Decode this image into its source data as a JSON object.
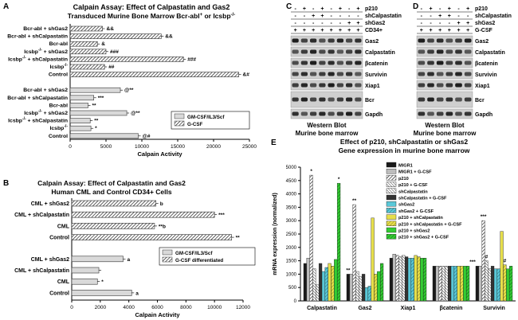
{
  "chart_data": [
    {
      "id": "A",
      "panel_letter": "A",
      "type": "bar",
      "orientation": "horizontal",
      "title": "Calpain Assay: Effect of Calpastatin and Gas2",
      "subtitle_part1": "Transduced Murine Bone Marrow Bcr-abl",
      "subtitle_sup": "+",
      "subtitle_part2": " or Icsbp",
      "subtitle_sup2": "-/-",
      "xlabel": "Calpain Activity",
      "xlim": [
        0,
        25000
      ],
      "xticks": [
        "0",
        "5000",
        "10000",
        "15000",
        "20000",
        "25000"
      ],
      "legend": [
        "GM-CSF/IL3/Scf",
        "G-CSF"
      ],
      "groups": [
        {
          "name": "G-CSF",
          "categories": [
            "Bcr-abl + shGas2",
            "Bcr-abl + shCalpastatin",
            "Bcr-abl",
            "Icsbp-/- + shGas2",
            "Icsbp-/- + shCalpastatin",
            "Icsbp-/-",
            "Control"
          ],
          "values": [
            4500,
            12700,
            3800,
            5000,
            15800,
            4800,
            23500
          ],
          "labels": [
            "&&",
            "&&",
            "&",
            "###",
            "###",
            "##",
            "&#"
          ]
        },
        {
          "name": "GM-CSF/IL3/Scf",
          "categories": [
            "Bcr-abl + shGas2",
            "Bcr-abl + shCalpastatin",
            "Bcr-abl",
            "Icsbp-/- + shGas2",
            "Icsbp-/- + shCalpastatin",
            "Icsbp-/-",
            "Control"
          ],
          "values": [
            7000,
            3300,
            2500,
            7900,
            2800,
            2900,
            9500
          ],
          "labels": [
            "@**",
            "***",
            "**",
            "@**",
            "**",
            "*",
            "@#"
          ]
        }
      ]
    },
    {
      "id": "B",
      "panel_letter": "B",
      "type": "bar",
      "orientation": "horizontal",
      "title": "Calpain Assay: Effect of Calpastatin and Gas2",
      "subtitle": "Human CML and Control CD34+ Cells",
      "xlabel": "Calpain Activity",
      "xlim": [
        0,
        12000
      ],
      "xticks": [
        "0",
        "2000",
        "4000",
        "6000",
        "8000",
        "10000",
        "12000"
      ],
      "legend": [
        "GM-CSF/IL3/Scf",
        "G-CSF differentiated"
      ],
      "groups": [
        {
          "name": "G-CSF differentiated",
          "categories": [
            "CML + shGas2",
            "CML + shCalpastatin",
            "CML",
            "Control"
          ],
          "values": [
            5900,
            10000,
            5800,
            11200
          ],
          "labels": [
            "b",
            "***",
            "**b",
            "**"
          ]
        },
        {
          "name": "GM-CSF/IL3/Scf",
          "categories": [
            "CML + shGas2",
            "CML + shCalpastatin",
            "CML",
            "Control"
          ],
          "values": [
            3600,
            1900,
            1800,
            4200
          ],
          "labels": [
            "a",
            "",
            "*",
            "a"
          ]
        }
      ]
    },
    {
      "id": "E",
      "panel_letter": "E",
      "type": "bar",
      "orientation": "vertical",
      "title": "Effect of p210, shCalpastatin or shGas2",
      "subtitle": "Gene expression in murine bone marrow",
      "ylabel": "mRNA expression (normalized)",
      "ylim": [
        0,
        5000
      ],
      "yticks": [
        "0",
        "500",
        "1000",
        "1500",
        "2000",
        "2500",
        "3000",
        "3500",
        "4000",
        "4500",
        "5000"
      ],
      "categories": [
        "Calpastatin",
        "Gas2",
        "Xiap1",
        "βcatenin",
        "Survivin"
      ],
      "series": [
        {
          "name": "MIGR1",
          "color": "#1a1a1a",
          "values": [
            1400,
            1000,
            1600,
            1300,
            1300
          ]
        },
        {
          "name": "MIGR1 + G-CSF",
          "color": "#bdbdbd",
          "values": [
            1600,
            1000,
            1750,
            1300,
            1300
          ]
        },
        {
          "name": "p210",
          "color": "#ffffff",
          "values": [
            4700,
            3600,
            1700,
            1300,
            3000
          ]
        },
        {
          "name": "p210 + G-CSF",
          "color": "#555555",
          "values": [
            1200,
            1100,
            1650,
            1300,
            1500
          ]
        },
        {
          "name": "shCalpastatin",
          "color": "#ffffff",
          "values": [
            600,
            900,
            1700,
            1300,
            1200
          ]
        },
        {
          "name": "shCalpastatin + G-CSF",
          "color": "#333333",
          "values": [
            1400,
            1000,
            1650,
            1300,
            1300
          ]
        },
        {
          "name": "shGas2",
          "color": "#5ac8d8",
          "values": [
            1100,
            500,
            1600,
            1300,
            1200
          ]
        },
        {
          "name": "shGas2 + G-CSF",
          "color": "#3aa0b0",
          "values": [
            1250,
            550,
            1600,
            1300,
            1200
          ]
        },
        {
          "name": "p210 + shCalpastatin",
          "color": "#e0d84a",
          "values": [
            1400,
            3100,
            1700,
            1300,
            2600
          ]
        },
        {
          "name": "p210 + shCalpastatin + G-CSF",
          "color": "#c8c030",
          "values": [
            1300,
            1000,
            1650,
            1300,
            1350
          ]
        },
        {
          "name": "p210 + shGas2",
          "color": "#33cc33",
          "values": [
            1550,
            1100,
            1600,
            1300,
            1200
          ]
        },
        {
          "name": "p210 + shGas2 + G-CSF",
          "color": "#1f9a1f",
          "values": [
            4400,
            1400,
            1600,
            1300,
            1300
          ]
        }
      ],
      "annotations": [
        {
          "category": "Calpastatin",
          "text": "*"
        },
        {
          "category": "Calpastatin",
          "text": "*"
        },
        {
          "category": "Gas2",
          "text": "**"
        },
        {
          "category": "Gas2",
          "text": "**"
        },
        {
          "category": "Survivin",
          "text": "***"
        },
        {
          "category": "Survivin",
          "text": "#"
        },
        {
          "category": "Survivin",
          "text": "***"
        },
        {
          "category": "Survivin",
          "text": "#"
        }
      ]
    }
  ],
  "western_blots": [
    {
      "id": "C",
      "panel_letter": "C",
      "header_rows": [
        {
          "label": "p210",
          "signs": [
            "-",
            "+",
            "-",
            "+",
            "-",
            "+",
            "-",
            "+"
          ]
        },
        {
          "label": "shCalpastatin",
          "signs": [
            "-",
            "-",
            "+",
            "+",
            "-",
            "-",
            "-",
            "-"
          ]
        },
        {
          "label": "shGas2",
          "signs": [
            "-",
            "-",
            "-",
            "-",
            "-",
            "-",
            "+",
            "+"
          ]
        },
        {
          "label": "CD34+",
          "signs": [
            "+",
            "+",
            "+",
            "+",
            "+",
            "+",
            "+",
            "+"
          ]
        }
      ],
      "bands": [
        "Gas2",
        "Calpastatin",
        "βcatenin",
        "Survivin",
        "Xiap1",
        "Bcr",
        "Gapdh"
      ],
      "caption1": "Western Blot",
      "caption2": "Murine bone marrow"
    },
    {
      "id": "D",
      "panel_letter": "D",
      "header_rows": [
        {
          "label": "p210",
          "signs": [
            "-",
            "+",
            "-",
            "+",
            "-",
            "+"
          ]
        },
        {
          "label": "shCalpastatin",
          "signs": [
            "-",
            "-",
            "+",
            "+",
            "-",
            "-"
          ]
        },
        {
          "label": "shGas2",
          "signs": [
            "-",
            "-",
            "-",
            "-",
            "+",
            "+"
          ]
        },
        {
          "label": "G-CSF",
          "signs": [
            "+",
            "+",
            "+",
            "+",
            "+",
            "+"
          ]
        }
      ],
      "bands": [
        "Gas2",
        "Calpastatin",
        "βcatenin",
        "Survivin",
        "Xiap1",
        "Bcr",
        "Gapdh"
      ],
      "caption1": "Western Blot",
      "caption2": "Murine bone marrow"
    }
  ]
}
